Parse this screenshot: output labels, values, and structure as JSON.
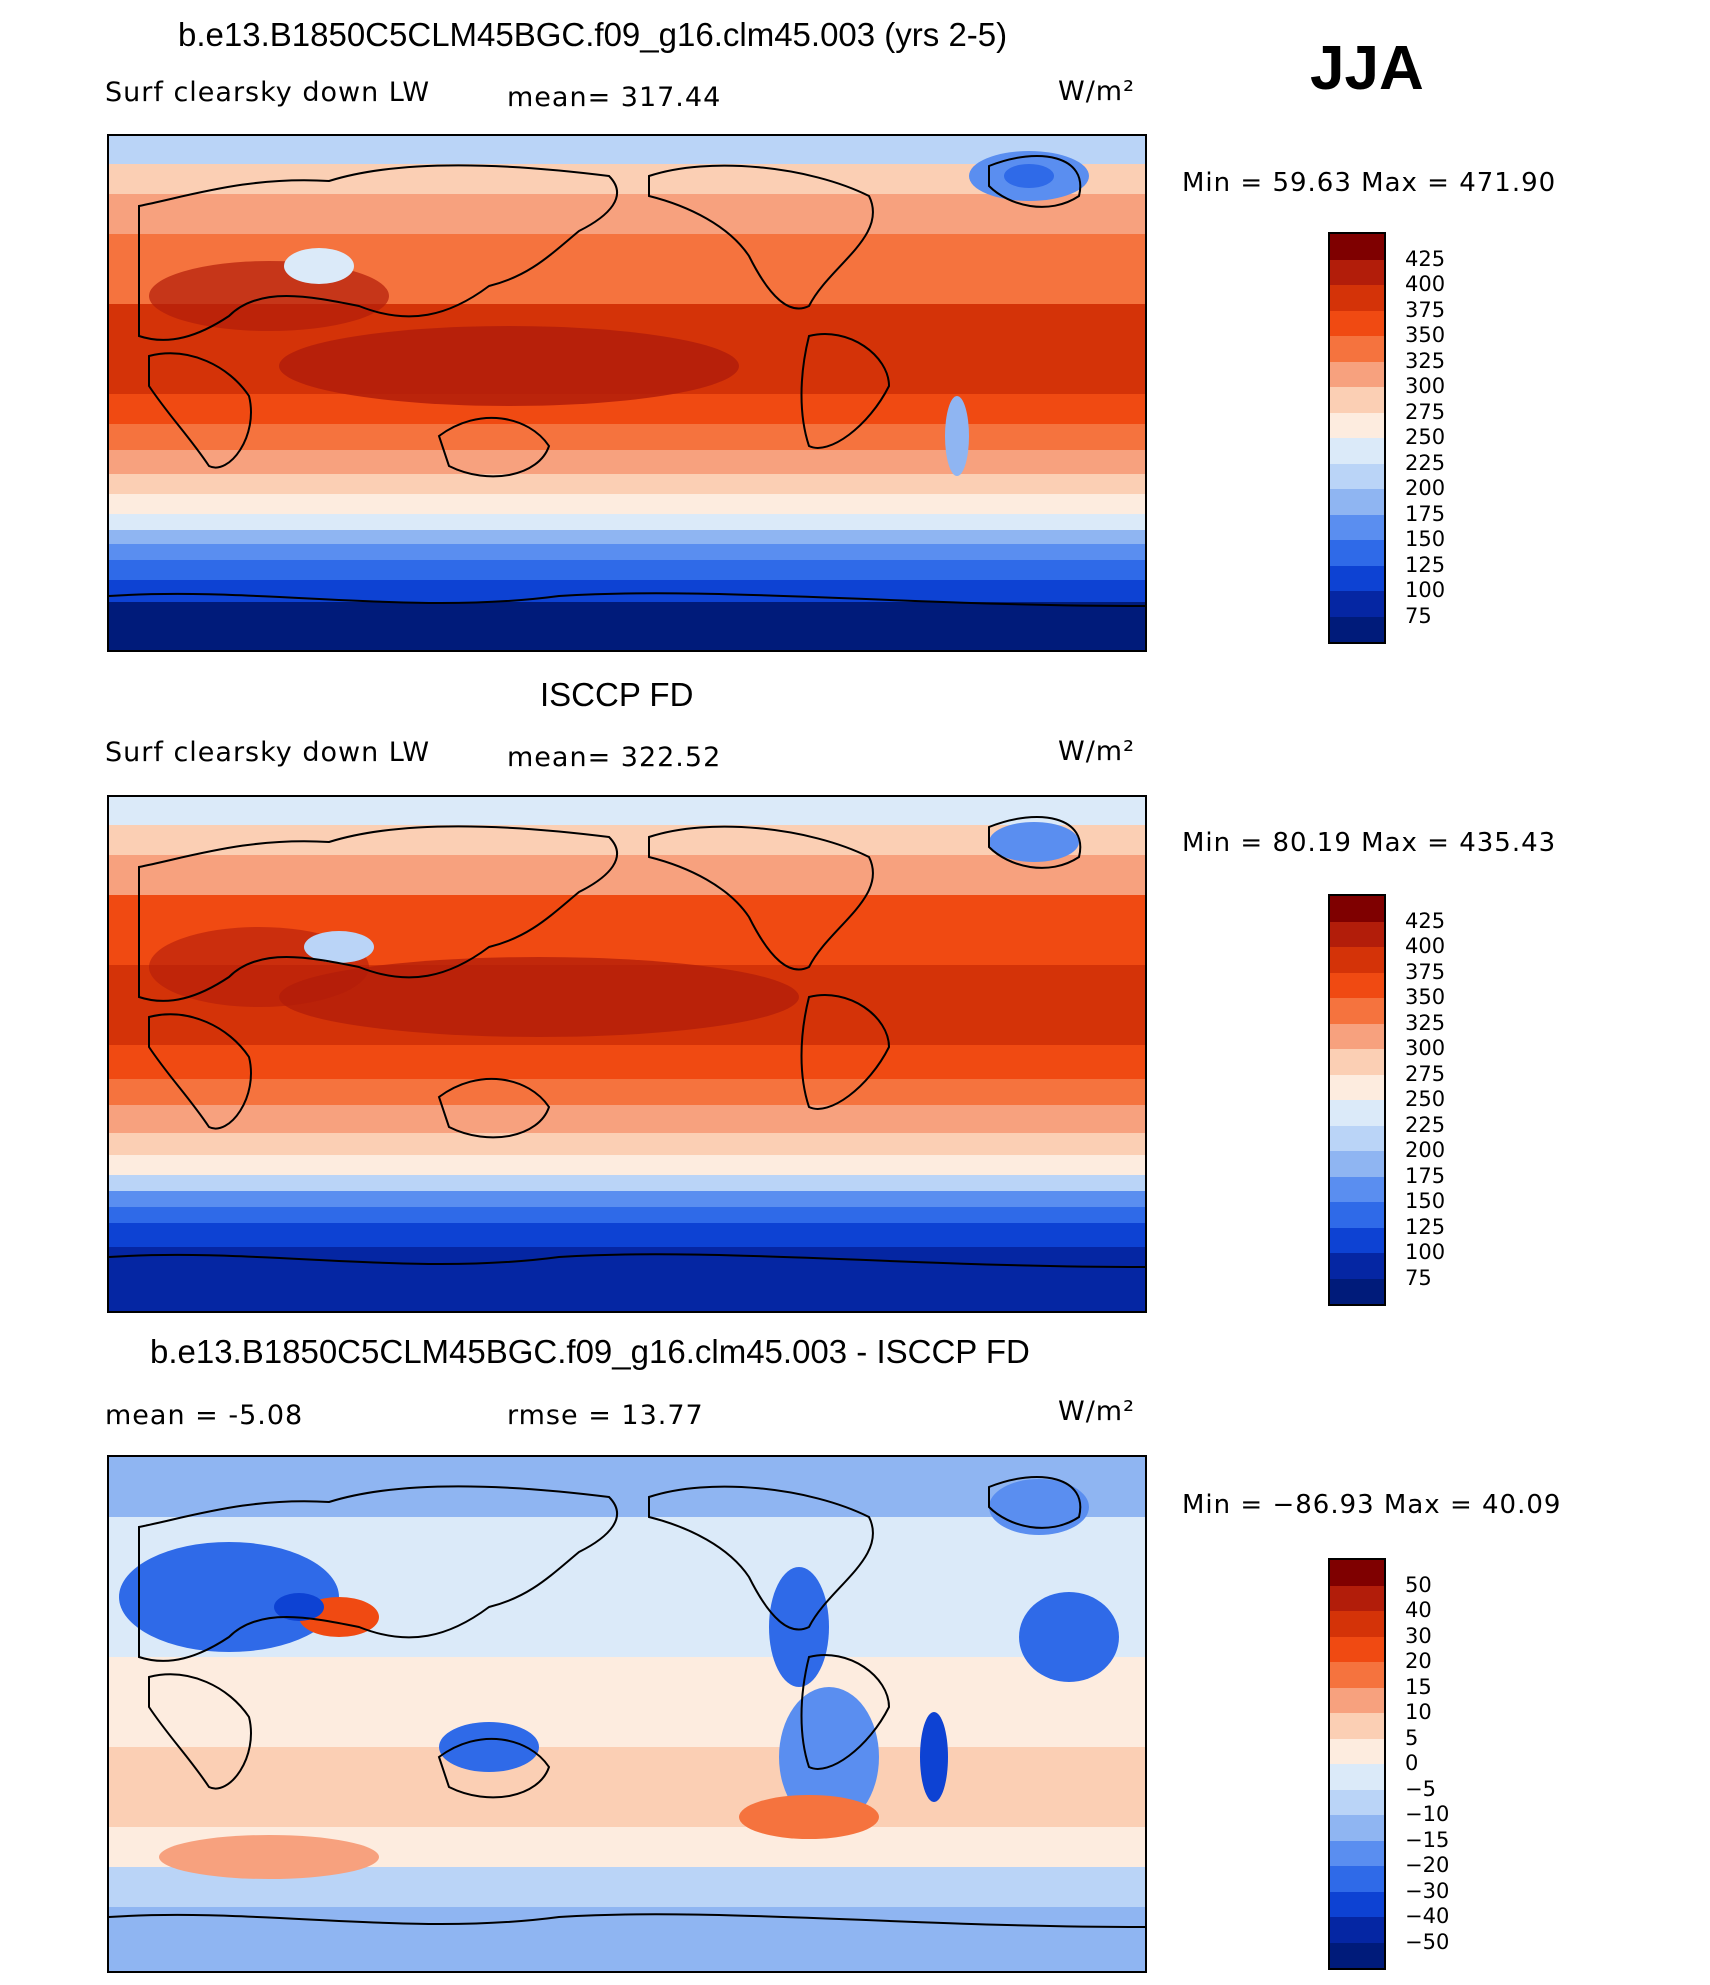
{
  "season": "JJA",
  "panels": [
    {
      "title": "b.e13.B1850C5CLM45BGC.f09_g16.clm45.003 (yrs 2-5)",
      "left_label": "Surf clearsky down LW",
      "mid_label": "mean= 317.44",
      "units": "W/m²",
      "minmax": "Min =   59.63 Max =  471.90",
      "colorbar": {
        "labels": [
          "425",
          "400",
          "375",
          "350",
          "325",
          "300",
          "275",
          "250",
          "225",
          "200",
          "175",
          "150",
          "125",
          "100",
          "75"
        ],
        "colors": [
          "#7f0000",
          "#b21d0a",
          "#d43308",
          "#f04a12",
          "#f5733e",
          "#f7a17e",
          "#fbcfb4",
          "#fdecdf",
          "#dbeaf9",
          "#bad4f7",
          "#8fb5f2",
          "#5a8ef0",
          "#2f6ae8",
          "#0d42d3",
          "#0526a3",
          "#001b7a"
        ]
      }
    },
    {
      "title": "ISCCP FD",
      "left_label": "Surf clearsky down LW",
      "mid_label": "mean= 322.52",
      "units": "W/m²",
      "minmax": "Min =   80.19 Max =  435.43",
      "colorbar": {
        "labels": [
          "425",
          "400",
          "375",
          "350",
          "325",
          "300",
          "275",
          "250",
          "225",
          "200",
          "175",
          "150",
          "125",
          "100",
          "75"
        ],
        "colors": [
          "#7f0000",
          "#b21d0a",
          "#d43308",
          "#f04a12",
          "#f5733e",
          "#f7a17e",
          "#fbcfb4",
          "#fdecdf",
          "#dbeaf9",
          "#bad4f7",
          "#8fb5f2",
          "#5a8ef0",
          "#2f6ae8",
          "#0d42d3",
          "#0526a3",
          "#001b7a"
        ]
      }
    },
    {
      "title": "b.e13.B1850C5CLM45BGC.f09_g16.clm45.003 - ISCCP FD",
      "left_label": "mean =   -5.08",
      "mid_label": "rmse =   13.77",
      "units": "W/m²",
      "minmax": "Min = −86.93 Max =   40.09",
      "colorbar": {
        "labels": [
          "50",
          "40",
          "30",
          "20",
          "15",
          "10",
          "5",
          "0",
          "−5",
          "−10",
          "−15",
          "−20",
          "−30",
          "−40",
          "−50"
        ],
        "colors": [
          "#7f0000",
          "#b21d0a",
          "#d43308",
          "#f04a12",
          "#f5733e",
          "#f7a17e",
          "#fbcfb4",
          "#fdecdf",
          "#dbeaf9",
          "#bad4f7",
          "#8fb5f2",
          "#5a8ef0",
          "#2f6ae8",
          "#0d42d3",
          "#0526a3",
          "#001b7a"
        ]
      }
    }
  ]
}
